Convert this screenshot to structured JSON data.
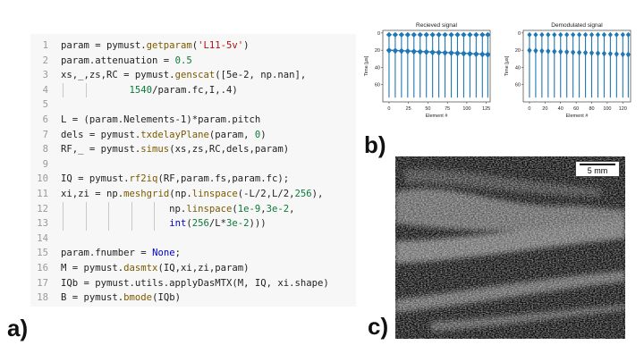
{
  "panel_labels": {
    "a": "a)",
    "b": "b)",
    "c": "c)"
  },
  "code_lines": [
    {
      "n": "1",
      "segs": [
        [
          "t",
          "param = pymust."
        ],
        [
          "fn",
          "getparam"
        ],
        [
          "t",
          "("
        ],
        [
          "str",
          "'L11-5v'"
        ],
        [
          "t",
          ")"
        ]
      ]
    },
    {
      "n": "2",
      "segs": [
        [
          "t",
          "param.attenuation = "
        ],
        [
          "num",
          "0.5"
        ]
      ]
    },
    {
      "n": "3",
      "segs": [
        [
          "t",
          "xs,_,zs,RC = pymust."
        ],
        [
          "fn",
          "genscat"
        ],
        [
          "t",
          "([5e-2, np.nan],"
        ]
      ]
    },
    {
      "n": "4",
      "guides": 2,
      "segs": [
        [
          "t",
          "            "
        ],
        [
          "num",
          "1540"
        ],
        [
          "t",
          "/param.fc,I,.4)"
        ]
      ]
    },
    {
      "n": "5",
      "segs": []
    },
    {
      "n": "6",
      "segs": [
        [
          "t",
          "L = (param.Nelements-1)*param.pitch"
        ]
      ]
    },
    {
      "n": "7",
      "segs": [
        [
          "t",
          "dels = pymust."
        ],
        [
          "fn",
          "txdelayPlane"
        ],
        [
          "t",
          "(param, "
        ],
        [
          "num",
          "0"
        ],
        [
          "t",
          ")"
        ]
      ]
    },
    {
      "n": "8",
      "segs": [
        [
          "t",
          "RF,_ = pymust."
        ],
        [
          "fn",
          "simus"
        ],
        [
          "t",
          "(xs,zs,RC,dels,param)"
        ]
      ]
    },
    {
      "n": "9",
      "segs": []
    },
    {
      "n": "10",
      "segs": [
        [
          "t",
          "IQ = pymust."
        ],
        [
          "fn",
          "rf2iq"
        ],
        [
          "t",
          "(RF,param.fs,param.fc);"
        ]
      ]
    },
    {
      "n": "11",
      "segs": [
        [
          "t",
          "xi,zi = np."
        ],
        [
          "fn",
          "meshgrid"
        ],
        [
          "t",
          "(np."
        ],
        [
          "fn",
          "linspace"
        ],
        [
          "t",
          "(-L/2,L/2,"
        ],
        [
          "num",
          "256"
        ],
        [
          "t",
          "),"
        ]
      ]
    },
    {
      "n": "12",
      "guides": 5,
      "segs": [
        [
          "t",
          "                   np."
        ],
        [
          "fn",
          "linspace"
        ],
        [
          "t",
          "("
        ],
        [
          "num",
          "1e-9"
        ],
        [
          "t",
          ","
        ],
        [
          "num",
          "3e-2"
        ],
        [
          "t",
          ","
        ]
      ]
    },
    {
      "n": "13",
      "guides": 5,
      "segs": [
        [
          "t",
          "                   "
        ],
        [
          "kw",
          "int"
        ],
        [
          "t",
          "("
        ],
        [
          "num",
          "256"
        ],
        [
          "t",
          "/L*"
        ],
        [
          "num",
          "3e-2"
        ],
        [
          "t",
          ")))"
        ]
      ]
    },
    {
      "n": "14",
      "segs": []
    },
    {
      "n": "15",
      "segs": [
        [
          "t",
          "param.fnumber = "
        ],
        [
          "kw",
          "None"
        ],
        [
          "t",
          ";"
        ]
      ]
    },
    {
      "n": "16",
      "segs": [
        [
          "t",
          "M = pymust."
        ],
        [
          "fn",
          "dasmtx"
        ],
        [
          "t",
          "(IQ,xi,zi,param)"
        ]
      ]
    },
    {
      "n": "17",
      "segs": [
        [
          "t",
          "IQb = pymust.utils.applyDasMTX(M, IQ, xi.shape)"
        ]
      ]
    },
    {
      "n": "18",
      "segs": [
        [
          "t",
          "B = pymust."
        ],
        [
          "fn",
          "bmode"
        ],
        [
          "t",
          "(IQb)"
        ]
      ]
    }
  ],
  "chart_data": [
    {
      "type": "scatter",
      "title": "Recieved signal",
      "xlabel": "Element #",
      "ylabel": "Time [μs]",
      "xlim": [
        -8,
        130
      ],
      "ylim": [
        80,
        -3
      ],
      "xticks": [
        0,
        25,
        50,
        75,
        100,
        125
      ],
      "yticks": [
        0,
        20,
        40,
        60
      ],
      "traces_x": [
        0,
        8,
        16,
        24,
        32,
        40,
        48,
        56,
        64,
        72,
        80,
        88,
        96,
        104,
        112,
        120,
        127
      ],
      "trace_bottom": [
        75,
        75,
        75,
        75,
        75,
        75,
        75,
        75,
        75,
        75,
        75,
        75,
        75,
        75,
        75,
        75,
        75
      ],
      "echo1_t": [
        1,
        1,
        1,
        1,
        1,
        1,
        1,
        1,
        1,
        1,
        1,
        1,
        1,
        1,
        1,
        1,
        1
      ],
      "echo2_t": [
        20,
        20.3,
        20.6,
        20.9,
        21.2,
        21.5,
        21.8,
        22.1,
        22.4,
        22.7,
        23,
        23.3,
        23.6,
        23.9,
        24.2,
        24.5,
        24.8
      ],
      "color": "#1f77b4"
    },
    {
      "type": "scatter",
      "title": "Demodulated signal",
      "xlabel": "Element #",
      "ylabel": "Time [μs]",
      "xlim": [
        -8,
        130
      ],
      "ylim": [
        80,
        -3
      ],
      "xticks": [
        0,
        20,
        40,
        60,
        80,
        100,
        120
      ],
      "yticks": [
        0,
        20,
        40,
        60
      ],
      "traces_x": [
        0,
        8,
        16,
        24,
        32,
        40,
        48,
        56,
        64,
        72,
        80,
        88,
        96,
        104,
        112,
        120,
        127
      ],
      "trace_bottom": [
        75,
        75,
        75,
        75,
        75,
        75,
        75,
        75,
        75,
        75,
        75,
        75,
        75,
        75,
        75,
        75,
        75
      ],
      "echo1_t": [
        1,
        1,
        1,
        1,
        1,
        1,
        1,
        1,
        1,
        1,
        1,
        1,
        1,
        1,
        1,
        1,
        1
      ],
      "echo2_t": [
        20,
        20.3,
        20.6,
        20.9,
        21.2,
        21.5,
        21.8,
        22.1,
        22.4,
        22.7,
        23,
        23.3,
        23.6,
        23.9,
        24.2,
        24.5,
        24.8
      ],
      "color": "#1f77b4"
    }
  ],
  "bmode": {
    "scale_label": "5 mm"
  }
}
